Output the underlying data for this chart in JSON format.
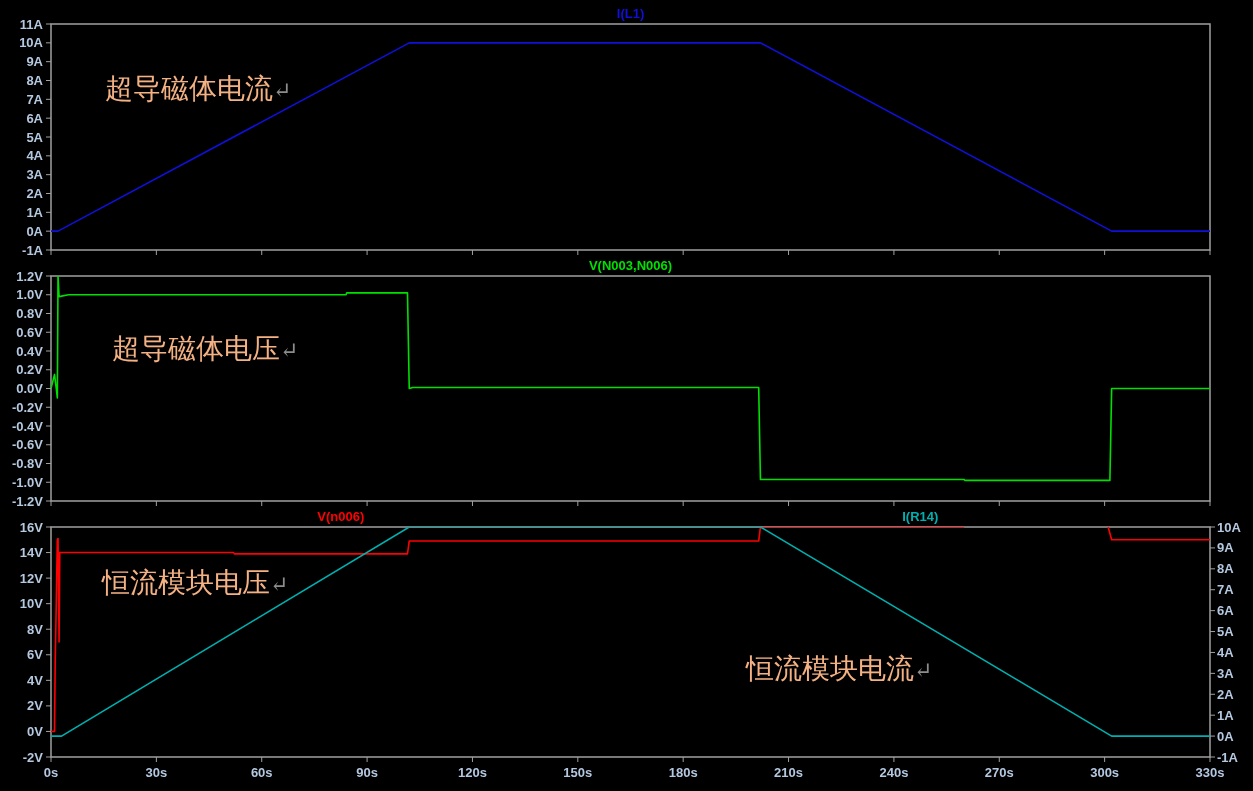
{
  "chart_data": [
    {
      "type": "line",
      "xlim": [
        0,
        330
      ],
      "xticks": [
        {
          "value": 0,
          "label": null
        },
        {
          "value": 30,
          "label": null
        },
        {
          "value": 60,
          "label": null
        },
        {
          "value": 90,
          "label": null
        },
        {
          "value": 120,
          "label": null
        },
        {
          "value": 150,
          "label": null
        },
        {
          "value": 180,
          "label": null
        },
        {
          "value": 210,
          "label": null
        },
        {
          "value": 240,
          "label": null
        },
        {
          "value": 270,
          "label": null
        },
        {
          "value": 300,
          "label": null
        },
        {
          "value": 330,
          "label": null
        }
      ],
      "ylim": [
        -1,
        11
      ],
      "yticks": [
        {
          "value": -1,
          "label": "-1A"
        },
        {
          "value": 0,
          "label": "0A"
        },
        {
          "value": 1,
          "label": "1A"
        },
        {
          "value": 2,
          "label": "2A"
        },
        {
          "value": 3,
          "label": "3A"
        },
        {
          "value": 4,
          "label": "4A"
        },
        {
          "value": 5,
          "label": "5A"
        },
        {
          "value": 6,
          "label": "6A"
        },
        {
          "value": 7,
          "label": "7A"
        },
        {
          "value": 8,
          "label": "8A"
        },
        {
          "value": 9,
          "label": "9A"
        },
        {
          "value": 10,
          "label": "10A"
        },
        {
          "value": 11,
          "label": "11A"
        }
      ],
      "tick_labels": "y",
      "legend": "top",
      "grid": false,
      "annotations": [
        "超导磁体电流↵"
      ],
      "series": [
        {
          "name": "I(L1)",
          "color": "#1010d8",
          "x": [
            0,
            2,
            102,
            202,
            302,
            330
          ],
          "values": [
            0,
            0,
            10,
            10,
            0,
            0
          ]
        }
      ]
    },
    {
      "type": "line",
      "xlim": [
        0,
        330
      ],
      "xticks": [
        {
          "value": 0,
          "label": null
        },
        {
          "value": 30,
          "label": null
        },
        {
          "value": 60,
          "label": null
        },
        {
          "value": 90,
          "label": null
        },
        {
          "value": 120,
          "label": null
        },
        {
          "value": 150,
          "label": null
        },
        {
          "value": 180,
          "label": null
        },
        {
          "value": 210,
          "label": null
        },
        {
          "value": 240,
          "label": null
        },
        {
          "value": 270,
          "label": null
        },
        {
          "value": 300,
          "label": null
        },
        {
          "value": 330,
          "label": null
        }
      ],
      "ylim": [
        -1.2,
        1.2
      ],
      "yticks": [
        {
          "value": -1.2,
          "label": "-1.2V"
        },
        {
          "value": -1,
          "label": "-1.0V"
        },
        {
          "value": -0.8,
          "label": "-0.8V"
        },
        {
          "value": -0.6,
          "label": "-0.6V"
        },
        {
          "value": -0.4,
          "label": "-0.4V"
        },
        {
          "value": -0.2,
          "label": "-0.2V"
        },
        {
          "value": 0,
          "label": "0.0V"
        },
        {
          "value": 0.2,
          "label": "0.2V"
        },
        {
          "value": 0.4,
          "label": "0.4V"
        },
        {
          "value": 0.6,
          "label": "0.6V"
        },
        {
          "value": 0.8,
          "label": "0.8V"
        },
        {
          "value": 1,
          "label": "1.0V"
        },
        {
          "value": 1.2,
          "label": "1.2V"
        }
      ],
      "tick_labels": "y",
      "legend": "top",
      "grid": false,
      "annotations": [
        "超导磁体电压↵"
      ],
      "series": [
        {
          "name": "V(N003,N006)",
          "color": "#00e000",
          "x": [
            0,
            1,
            1.5,
            1.8,
            2,
            2.3,
            5,
            84,
            84.2,
            101.5,
            102,
            103,
            201.5,
            202,
            260,
            260.2,
            301.5,
            302,
            330
          ],
          "values": [
            0,
            0.15,
            0,
            -0.1,
            1.2,
            0.98,
            1.0,
            1.0,
            1.02,
            1.02,
            0,
            0.01,
            0.01,
            -0.97,
            -0.97,
            -0.98,
            -0.98,
            0,
            0
          ]
        }
      ]
    },
    {
      "type": "line",
      "xlim": [
        0,
        330
      ],
      "xticks": [
        {
          "value": 0,
          "label": "0s"
        },
        {
          "value": 30,
          "label": "30s"
        },
        {
          "value": 60,
          "label": "60s"
        },
        {
          "value": 90,
          "label": "90s"
        },
        {
          "value": 120,
          "label": "120s"
        },
        {
          "value": 150,
          "label": "150s"
        },
        {
          "value": 180,
          "label": "180s"
        },
        {
          "value": 210,
          "label": "210s"
        },
        {
          "value": 240,
          "label": "240s"
        },
        {
          "value": 270,
          "label": "270s"
        },
        {
          "value": 300,
          "label": "300s"
        },
        {
          "value": 330,
          "label": "330s"
        }
      ],
      "ylim": [
        -2,
        16
      ],
      "yticks": [
        {
          "value": -2,
          "label": "-2V"
        },
        {
          "value": 0,
          "label": "0V"
        },
        {
          "value": 2,
          "label": "2V"
        },
        {
          "value": 4,
          "label": "4V"
        },
        {
          "value": 6,
          "label": "6V"
        },
        {
          "value": 8,
          "label": "8V"
        },
        {
          "value": 10,
          "label": "10V"
        },
        {
          "value": 12,
          "label": "12V"
        },
        {
          "value": 14,
          "label": "14V"
        },
        {
          "value": 16,
          "label": "16V"
        }
      ],
      "y2lim": [
        -1,
        10
      ],
      "y2ticks": [
        {
          "value": -1,
          "label": "-1A"
        },
        {
          "value": 0,
          "label": "0A"
        },
        {
          "value": 1,
          "label": "1A"
        },
        {
          "value": 2,
          "label": "2A"
        },
        {
          "value": 3,
          "label": "3A"
        },
        {
          "value": 4,
          "label": "4A"
        },
        {
          "value": 5,
          "label": "5A"
        },
        {
          "value": 6,
          "label": "6A"
        },
        {
          "value": 7,
          "label": "7A"
        },
        {
          "value": 8,
          "label": "8A"
        },
        {
          "value": 9,
          "label": "9A"
        },
        {
          "value": 10,
          "label": "10A"
        }
      ],
      "legend": "top",
      "grid": false,
      "annotations": [
        "恒流模块电压↵",
        "恒流模块电流↵"
      ],
      "series": [
        {
          "name": "V(n006)",
          "color": "#ff0000",
          "x": [
            0,
            1,
            1.2,
            1.5,
            1.8,
            2,
            2.3,
            2.5,
            52,
            52.2,
            101.5,
            102,
            201.5,
            202,
            260,
            301,
            302,
            330
          ],
          "values": [
            0,
            0,
            5.5,
            10,
            15,
            15.1,
            7,
            14,
            14,
            13.9,
            13.9,
            14.9,
            14.9,
            16,
            null,
            16,
            15,
            15
          ]
        },
        {
          "name": "I(R14)",
          "color": "#00b0b0",
          "axis": "y2",
          "x": [
            0,
            3,
            102,
            202,
            302,
            330
          ],
          "values": [
            0,
            0,
            10,
            10,
            0,
            0
          ]
        }
      ]
    }
  ]
}
